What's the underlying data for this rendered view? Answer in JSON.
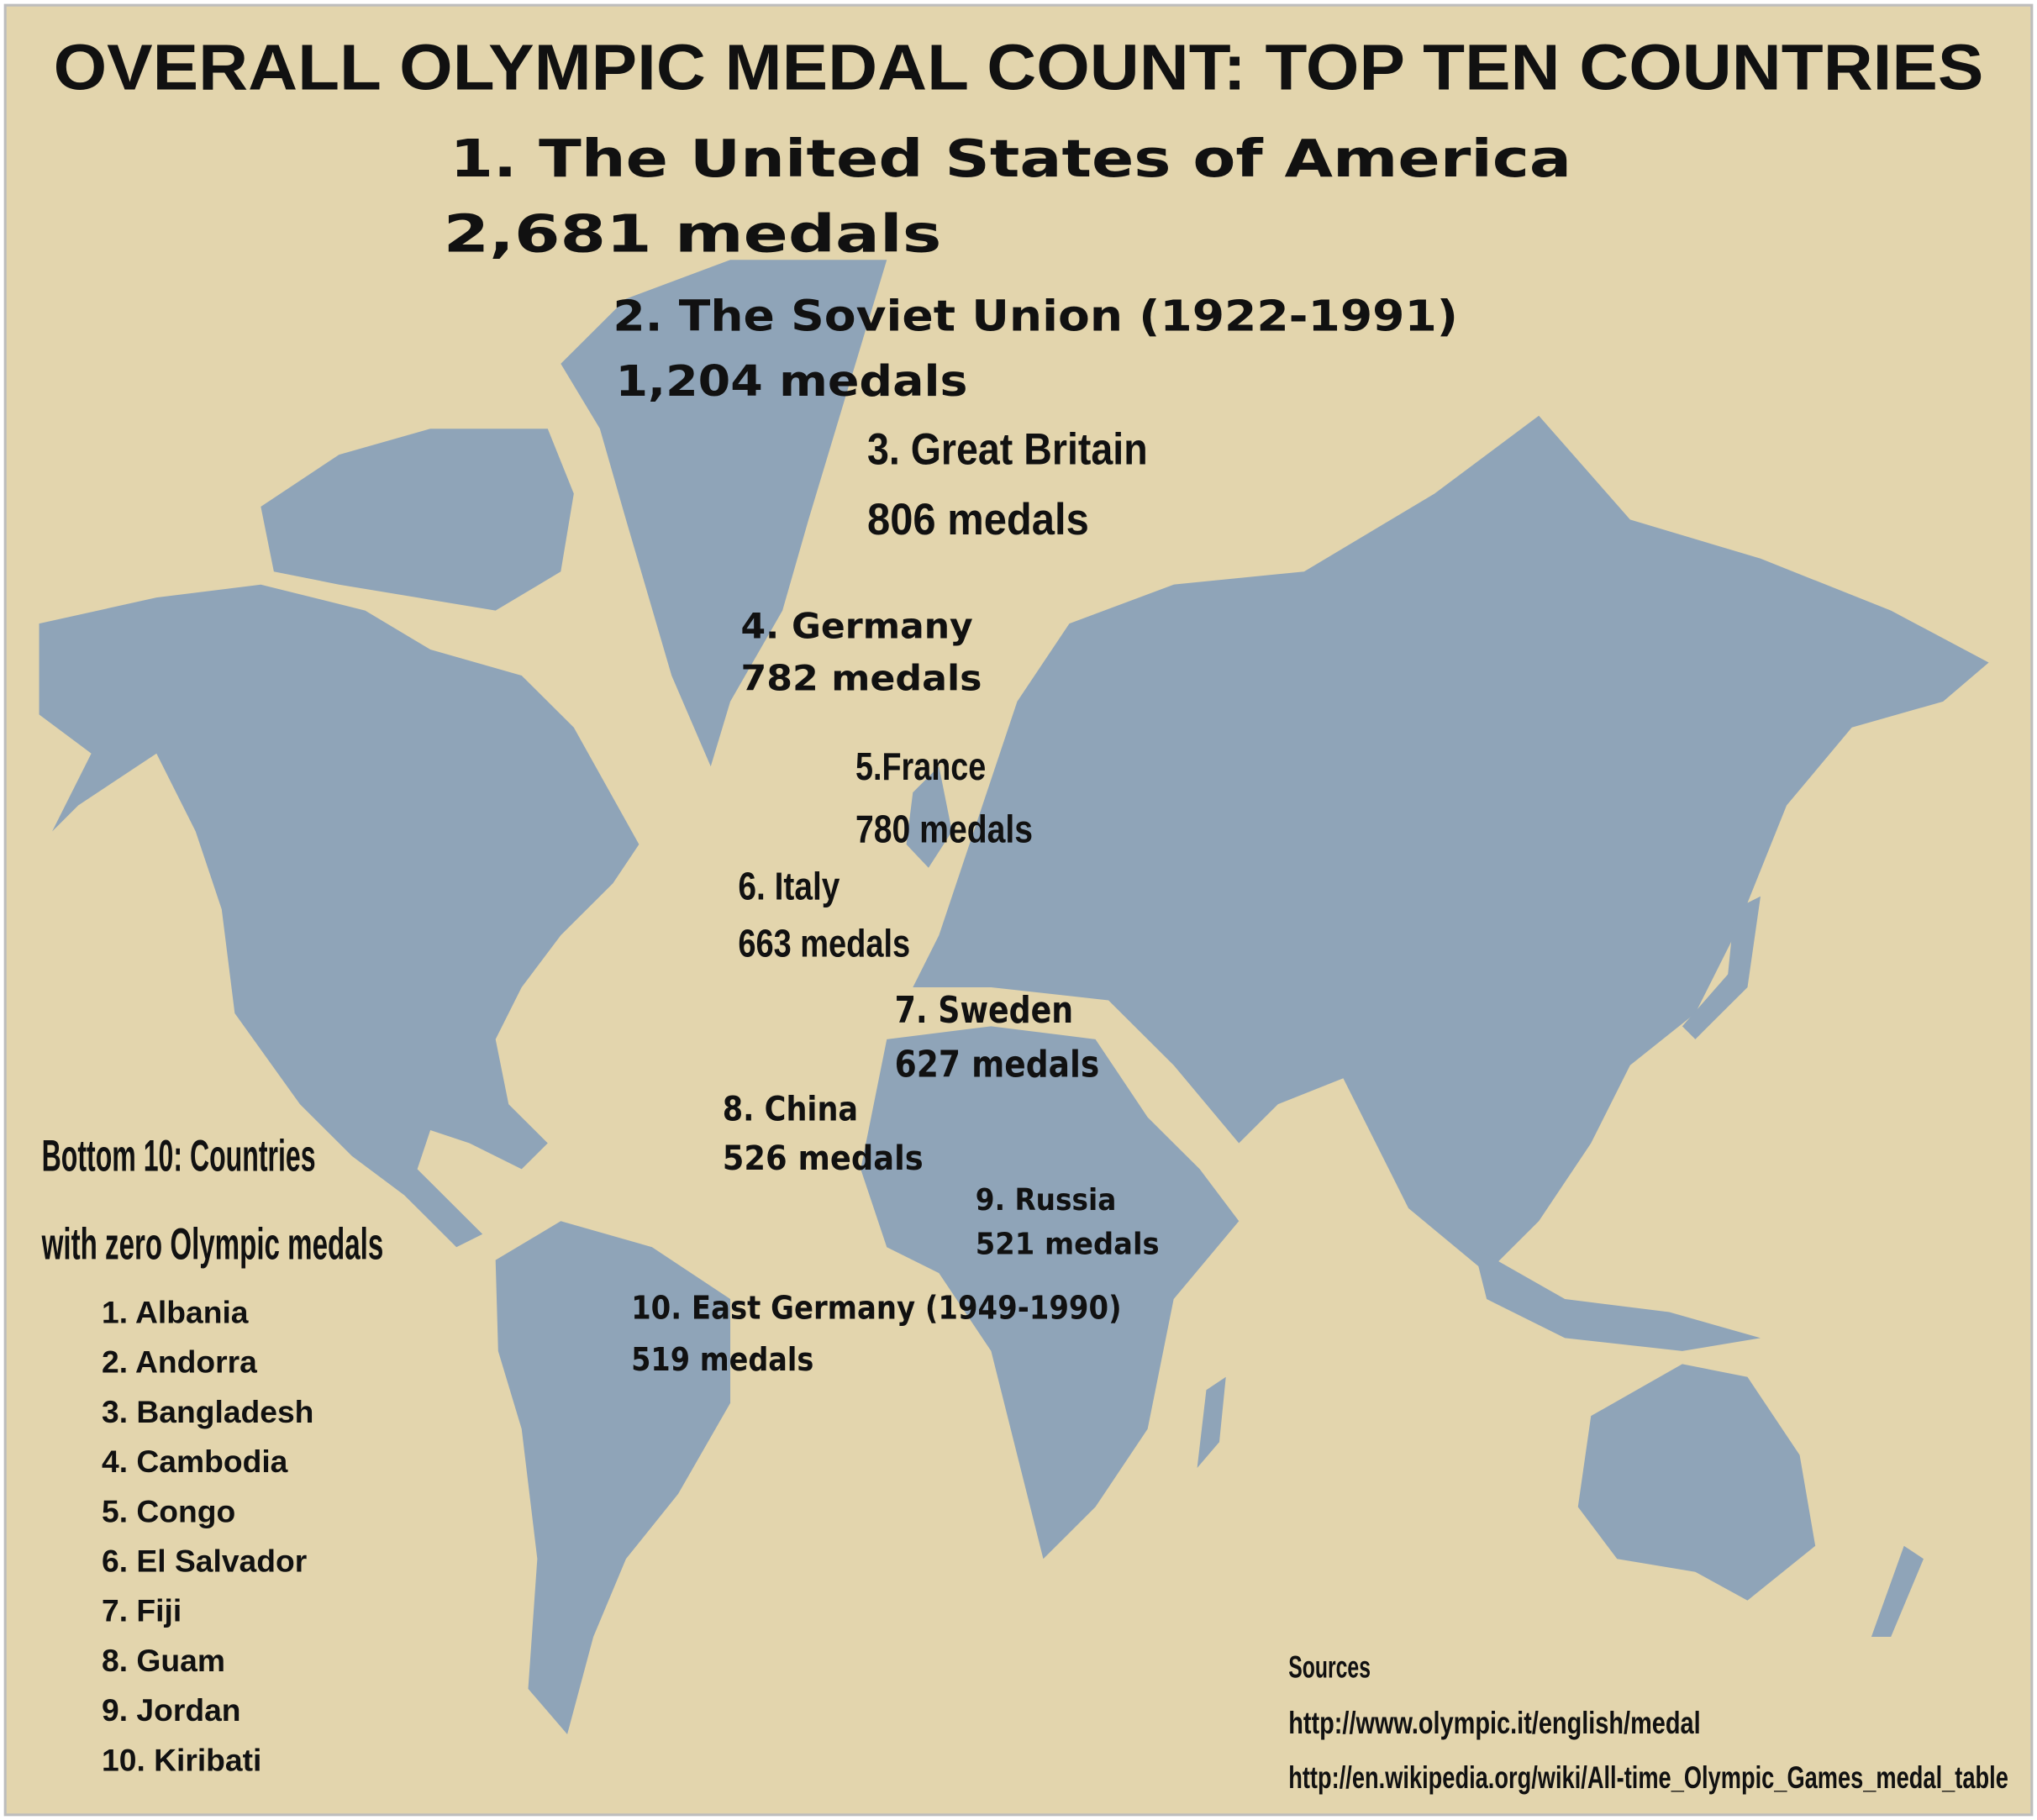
{
  "title": "OVERALL OLYMPIC MEDAL COUNT: TOP TEN COUNTRIES",
  "top_ten": [
    {
      "country": "1. The United States of America",
      "medals": "2,681 medals"
    },
    {
      "country": "2. The Soviet Union (1922-1991)",
      "medals": "1,204 medals"
    },
    {
      "country": "3. Great Britain",
      "medals": "806 medals"
    },
    {
      "country": "4. Germany",
      "medals": "782 medals"
    },
    {
      "country": "5.France",
      "medals": "780 medals"
    },
    {
      "country": "6. Italy",
      "medals": "663 medals"
    },
    {
      "country": "7. Sweden",
      "medals": "627 medals"
    },
    {
      "country": "8. China",
      "medals": "526 medals"
    },
    {
      "country": "9. Russia",
      "medals": "521 medals"
    },
    {
      "country": "10. East Germany (1949-1990)",
      "medals": "519 medals"
    }
  ],
  "bottom_ten": {
    "heading": [
      "Bottom 10: Countries",
      "with zero Olympic medals"
    ],
    "countries": [
      "1. Albania",
      "2. Andorra",
      "3. Bangladesh",
      "4. Cambodia",
      "5. Congo",
      "6. El Salvador",
      "7. Fiji",
      "8. Guam",
      "9. Jordan",
      "10. Kiribati"
    ]
  },
  "sources": {
    "heading": "Sources",
    "links": [
      "http://www.olympic.it/english/medal",
      "http://en.wikipedia.org/wiki/All-time_Olympic_Games_medal_table"
    ]
  }
}
